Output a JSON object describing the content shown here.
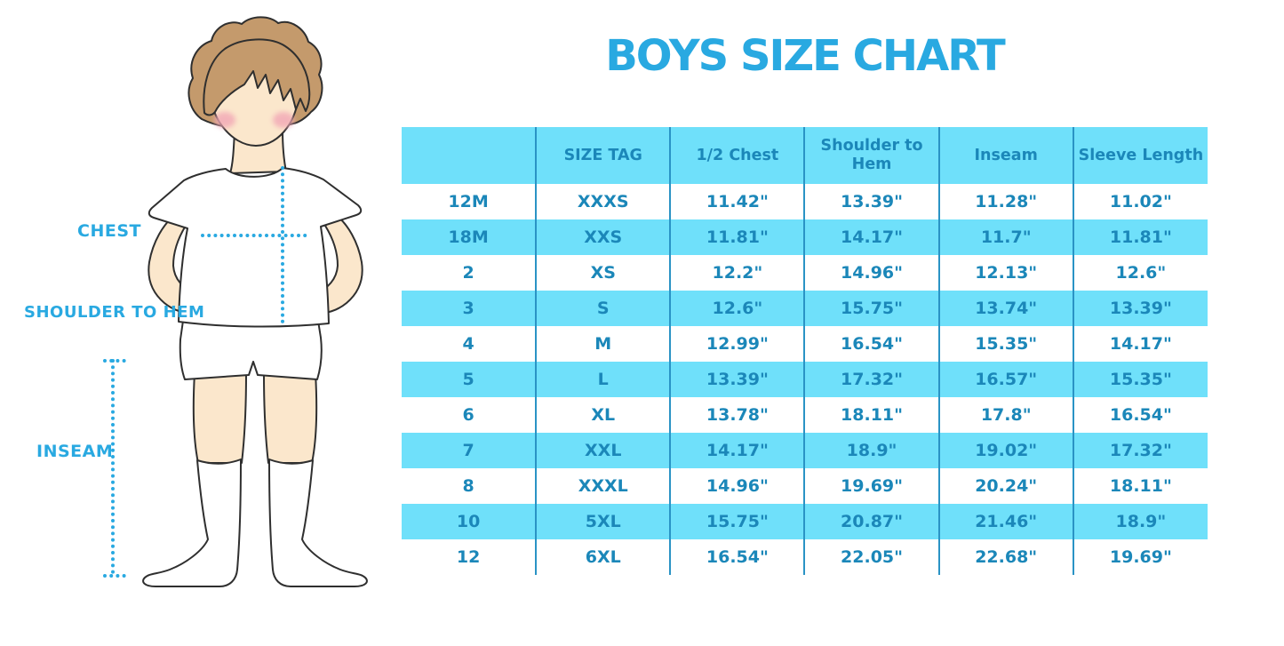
{
  "title": "BOYS SIZE CHART",
  "figure": {
    "labels": {
      "chest": "CHEST",
      "shoulder_to_hem": "SHOULDER TO HEM",
      "inseam": "INSEAM"
    }
  },
  "chart_data": {
    "type": "table",
    "title": "BOYS SIZE CHART",
    "columns": [
      "",
      "SIZE TAG",
      "1/2 Chest",
      "Shoulder to Hem",
      "Inseam",
      "Sleeve Length"
    ],
    "rows": [
      [
        "12M",
        "XXXS",
        "11.42\"",
        "13.39\"",
        "11.28\"",
        "11.02\""
      ],
      [
        "18M",
        "XXS",
        "11.81\"",
        "14.17\"",
        "11.7\"",
        "11.81\""
      ],
      [
        "2",
        "XS",
        "12.2\"",
        "14.96\"",
        "12.13\"",
        "12.6\""
      ],
      [
        "3",
        "S",
        "12.6\"",
        "15.75\"",
        "13.74\"",
        "13.39\""
      ],
      [
        "4",
        "M",
        "12.99\"",
        "16.54\"",
        "15.35\"",
        "14.17\""
      ],
      [
        "5",
        "L",
        "13.39\"",
        "17.32\"",
        "16.57\"",
        "15.35\""
      ],
      [
        "6",
        "XL",
        "13.78\"",
        "18.11\"",
        "17.8\"",
        "16.54\""
      ],
      [
        "7",
        "XXL",
        "14.17\"",
        "18.9\"",
        "19.02\"",
        "17.32\""
      ],
      [
        "8",
        "XXXL",
        "14.96\"",
        "19.69\"",
        "20.24\"",
        "18.11\""
      ],
      [
        "10",
        "5XL",
        "15.75\"",
        "20.87\"",
        "21.46\"",
        "18.9\""
      ],
      [
        "12",
        "6XL",
        "16.54\"",
        "22.05\"",
        "22.68\"",
        "19.69\""
      ]
    ],
    "layout": {
      "striped_rows": true,
      "stripe_pattern": "white/blue alternating, header blue",
      "column_dividers": true
    }
  },
  "colors": {
    "accent": "#29a9e1",
    "text": "#1b87b9",
    "band": "#6fe0fa",
    "line": "#2a93c5",
    "skin": "#fbe7cc",
    "hair": "#c49a6c",
    "cheek": "#f2a7b6",
    "outline": "#2f2f2f",
    "bg": "#ffffff"
  }
}
